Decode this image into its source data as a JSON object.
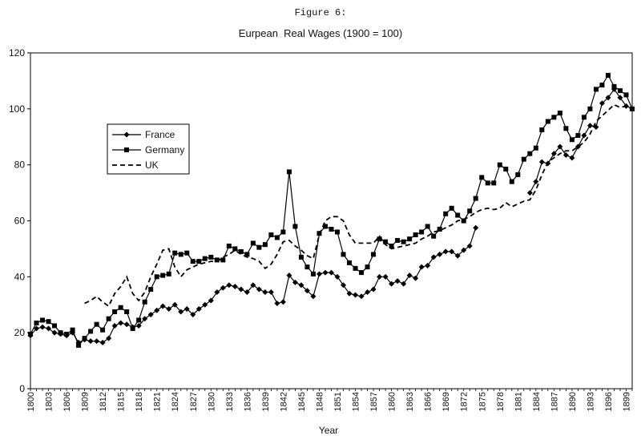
{
  "figure_label": "Figure 6:",
  "chart_data": {
    "type": "line",
    "title": "Eurpean  Real Wages (1900 = 100)",
    "xlabel": "Year",
    "ylabel": "",
    "xlim": [
      1800,
      1900
    ],
    "ylim": [
      0,
      120
    ],
    "y_ticks": [
      0,
      20,
      40,
      60,
      80,
      100,
      120
    ],
    "x_tick_labels": [
      "1800",
      "1803",
      "1806",
      "1809",
      "1812",
      "1815",
      "1818",
      "1821",
      "1824",
      "1827",
      "1830",
      "1833",
      "1836",
      "1839",
      "1842",
      "1845",
      "1848",
      "1851",
      "1854",
      "1857",
      "1860",
      "1863",
      "1866",
      "1869",
      "1872",
      "1875",
      "1878",
      "1881",
      "1884",
      "1887",
      "1890",
      "1893",
      "1896",
      "1899"
    ],
    "grid": false,
    "legend_position": "left-middle",
    "series": [
      {
        "name": "France",
        "style": "solid-diamond",
        "color": "#000000",
        "points": [
          [
            1800,
            19
          ],
          [
            1801,
            21.5
          ],
          [
            1802,
            22
          ],
          [
            1803,
            21.5
          ],
          [
            1804,
            20
          ],
          [
            1805,
            19.5
          ],
          [
            1806,
            19
          ],
          [
            1807,
            20
          ],
          [
            1808,
            16.5
          ],
          [
            1809,
            17.5
          ],
          [
            1810,
            17
          ],
          [
            1811,
            17
          ],
          [
            1812,
            16.5
          ],
          [
            1813,
            18
          ],
          [
            1814,
            22.5
          ],
          [
            1815,
            23.5
          ],
          [
            1816,
            23
          ],
          [
            1817,
            22
          ],
          [
            1818,
            22.5
          ],
          [
            1819,
            25
          ],
          [
            1820,
            26.5
          ],
          [
            1821,
            28
          ],
          [
            1822,
            29.5
          ],
          [
            1823,
            28.5
          ],
          [
            1824,
            30
          ],
          [
            1825,
            27.5
          ],
          [
            1826,
            28.5
          ],
          [
            1827,
            26.5
          ],
          [
            1828,
            28.5
          ],
          [
            1829,
            30
          ],
          [
            1830,
            31.5
          ],
          [
            1831,
            34.5
          ],
          [
            1832,
            36
          ],
          [
            1833,
            37
          ],
          [
            1834,
            36.5
          ],
          [
            1835,
            35.5
          ],
          [
            1836,
            34.5
          ],
          [
            1837,
            37
          ],
          [
            1838,
            35.5
          ],
          [
            1839,
            34.5
          ],
          [
            1840,
            34.5
          ],
          [
            1841,
            30.5
          ],
          [
            1842,
            31
          ],
          [
            1843,
            40.5
          ],
          [
            1844,
            38
          ],
          [
            1845,
            37
          ],
          [
            1846,
            35
          ],
          [
            1847,
            33
          ],
          [
            1848,
            41
          ],
          [
            1849,
            41.5
          ],
          [
            1850,
            41.5
          ],
          [
            1851,
            40
          ],
          [
            1852,
            37
          ],
          [
            1853,
            34
          ],
          [
            1854,
            33.5
          ],
          [
            1855,
            33
          ],
          [
            1856,
            34.5
          ],
          [
            1857,
            35.5
          ],
          [
            1858,
            40
          ],
          [
            1859,
            40
          ],
          [
            1860,
            37.5
          ],
          [
            1861,
            38.5
          ],
          [
            1862,
            37.5
          ],
          [
            1863,
            40.5
          ],
          [
            1864,
            39.5
          ],
          [
            1865,
            43.5
          ],
          [
            1866,
            44
          ],
          [
            1867,
            47
          ],
          [
            1868,
            48
          ],
          [
            1869,
            49
          ],
          [
            1870,
            49
          ],
          [
            1871,
            47.5
          ],
          [
            1872,
            49.5
          ],
          [
            1873,
            51
          ],
          [
            1874,
            57.5
          ],
          [
            null,
            null
          ],
          [
            1883,
            70
          ],
          [
            1884,
            74
          ],
          [
            1885,
            81
          ],
          [
            1886,
            80.5
          ],
          [
            1887,
            84
          ],
          [
            1888,
            86.5
          ],
          [
            1889,
            83.5
          ],
          [
            1890,
            82.5
          ],
          [
            1891,
            86.5
          ],
          [
            1892,
            90.5
          ],
          [
            1893,
            94
          ],
          [
            1894,
            93.5
          ],
          [
            1895,
            102
          ],
          [
            1896,
            104
          ],
          [
            1897,
            107
          ],
          [
            1898,
            104
          ],
          [
            1899,
            101
          ],
          [
            1900,
            100
          ]
        ]
      },
      {
        "name": "Germany",
        "style": "solid-square",
        "color": "#000000",
        "points": [
          [
            1800,
            19.5
          ],
          [
            1801,
            23.5
          ],
          [
            1802,
            24.5
          ],
          [
            1803,
            24
          ],
          [
            1804,
            22.5
          ],
          [
            1805,
            20
          ],
          [
            1806,
            19.5
          ],
          [
            1807,
            21
          ],
          [
            1808,
            15.5
          ],
          [
            1809,
            18
          ],
          [
            1810,
            20.5
          ],
          [
            1811,
            23
          ],
          [
            1812,
            21
          ],
          [
            1813,
            25
          ],
          [
            1814,
            27.5
          ],
          [
            1815,
            29
          ],
          [
            1816,
            27.5
          ],
          [
            1817,
            21.5
          ],
          [
            1818,
            24.5
          ],
          [
            1819,
            31
          ],
          [
            1820,
            35.5
          ],
          [
            1821,
            40
          ],
          [
            1822,
            40.5
          ],
          [
            1823,
            41
          ],
          [
            1824,
            48.5
          ],
          [
            1825,
            48
          ],
          [
            1826,
            48.5
          ],
          [
            1827,
            45.5
          ],
          [
            1828,
            45.5
          ],
          [
            1829,
            46.5
          ],
          [
            1830,
            47
          ],
          [
            1831,
            46
          ],
          [
            1832,
            46
          ],
          [
            1833,
            51
          ],
          [
            1834,
            50
          ],
          [
            1835,
            49
          ],
          [
            1836,
            48
          ],
          [
            1837,
            52
          ],
          [
            1838,
            50.5
          ],
          [
            1839,
            51.5
          ],
          [
            1840,
            55
          ],
          [
            1841,
            54
          ],
          [
            1842,
            56
          ],
          [
            1843,
            77.5
          ],
          [
            1844,
            58
          ],
          [
            1845,
            47
          ],
          [
            1846,
            43.5
          ],
          [
            1847,
            41
          ],
          [
            1848,
            55.5
          ],
          [
            1849,
            58
          ],
          [
            1850,
            57
          ],
          [
            1851,
            56
          ],
          [
            1852,
            48
          ],
          [
            1853,
            45
          ],
          [
            1854,
            43
          ],
          [
            1855,
            41.5
          ],
          [
            1856,
            43.5
          ],
          [
            1857,
            48
          ],
          [
            1858,
            53.5
          ],
          [
            1859,
            52.5
          ],
          [
            1860,
            51
          ],
          [
            1861,
            53
          ],
          [
            1862,
            52.5
          ],
          [
            1863,
            53.5
          ],
          [
            1864,
            55
          ],
          [
            1865,
            56
          ],
          [
            1866,
            58
          ],
          [
            1867,
            54.5
          ],
          [
            1868,
            57
          ],
          [
            1869,
            62.5
          ],
          [
            1870,
            64.5
          ],
          [
            1871,
            62
          ],
          [
            1872,
            60
          ],
          [
            1873,
            63.5
          ],
          [
            1874,
            68
          ],
          [
            1875,
            75.5
          ],
          [
            1876,
            73.5
          ],
          [
            1877,
            73.5
          ],
          [
            1878,
            80
          ],
          [
            1879,
            78.5
          ],
          [
            1880,
            74
          ],
          [
            1881,
            76.5
          ],
          [
            1882,
            82
          ],
          [
            1883,
            84
          ],
          [
            1884,
            86
          ],
          [
            1885,
            92.5
          ],
          [
            1886,
            95.5
          ],
          [
            1887,
            97
          ],
          [
            1888,
            98.5
          ],
          [
            1889,
            93
          ],
          [
            1890,
            89
          ],
          [
            1891,
            90.5
          ],
          [
            1892,
            97
          ],
          [
            1893,
            100
          ],
          [
            1894,
            107
          ],
          [
            1895,
            108.5
          ],
          [
            1896,
            112
          ],
          [
            1897,
            108
          ],
          [
            1898,
            106.5
          ],
          [
            1899,
            105
          ],
          [
            1900,
            100
          ]
        ]
      },
      {
        "name": "UK",
        "style": "dashed",
        "color": "#000000",
        "points": [
          [
            1809,
            30.5
          ],
          [
            1810,
            31.5
          ],
          [
            1811,
            33
          ],
          [
            1812,
            31
          ],
          [
            1813,
            29.5
          ],
          [
            1814,
            34
          ],
          [
            1815,
            36.5
          ],
          [
            1816,
            40
          ],
          [
            1817,
            34
          ],
          [
            1818,
            31.5
          ],
          [
            1819,
            34.5
          ],
          [
            1820,
            40
          ],
          [
            1821,
            44.5
          ],
          [
            1822,
            49.5
          ],
          [
            1823,
            50
          ],
          [
            1824,
            43.5
          ],
          [
            1825,
            40
          ],
          [
            1826,
            42.5
          ],
          [
            1827,
            43.5
          ],
          [
            1828,
            44.5
          ],
          [
            1829,
            45
          ],
          [
            1830,
            45.5
          ],
          [
            1831,
            45.5
          ],
          [
            1832,
            47
          ],
          [
            1833,
            48
          ],
          [
            1834,
            49.5
          ],
          [
            1835,
            48
          ],
          [
            1836,
            47
          ],
          [
            1837,
            46.5
          ],
          [
            1838,
            45.5
          ],
          [
            1839,
            43
          ],
          [
            1840,
            44.5
          ],
          [
            1841,
            48
          ],
          [
            1842,
            52.5
          ],
          [
            1843,
            53
          ],
          [
            1844,
            51
          ],
          [
            1845,
            49.5
          ],
          [
            1846,
            47.5
          ],
          [
            1847,
            46.5
          ],
          [
            1848,
            55
          ],
          [
            1849,
            60
          ],
          [
            1850,
            61.5
          ],
          [
            1851,
            61.5
          ],
          [
            1852,
            60
          ],
          [
            1853,
            55
          ],
          [
            1854,
            52
          ],
          [
            1855,
            52
          ],
          [
            1856,
            52
          ],
          [
            1857,
            52
          ],
          [
            1858,
            54.5
          ],
          [
            1859,
            51.5
          ],
          [
            1860,
            50
          ],
          [
            1861,
            50.5
          ],
          [
            1862,
            51
          ],
          [
            1863,
            51.5
          ],
          [
            1864,
            52
          ],
          [
            1865,
            53.5
          ],
          [
            1866,
            54.5
          ],
          [
            1867,
            56
          ],
          [
            1868,
            56.5
          ],
          [
            1869,
            57.5
          ],
          [
            1870,
            58.5
          ],
          [
            1871,
            60
          ],
          [
            1872,
            60.5
          ],
          [
            1873,
            61.5
          ],
          [
            1874,
            63
          ],
          [
            1875,
            64
          ],
          [
            1876,
            64.5
          ],
          [
            1877,
            64
          ],
          [
            1878,
            64.5
          ],
          [
            1879,
            66.5
          ],
          [
            1880,
            65
          ],
          [
            1881,
            66
          ],
          [
            1882,
            67
          ],
          [
            1883,
            67.5
          ],
          [
            1884,
            71
          ],
          [
            1885,
            76.5
          ],
          [
            1886,
            81
          ],
          [
            1887,
            82.5
          ],
          [
            1888,
            84
          ],
          [
            1889,
            85
          ],
          [
            1890,
            85
          ],
          [
            1891,
            86.5
          ],
          [
            1892,
            88
          ],
          [
            1893,
            91
          ],
          [
            1894,
            95.5
          ],
          [
            1895,
            97.5
          ],
          [
            1896,
            99.5
          ],
          [
            1897,
            101.5
          ],
          [
            1898,
            100.5
          ],
          [
            1899,
            101
          ],
          [
            1900,
            100
          ]
        ]
      }
    ]
  }
}
